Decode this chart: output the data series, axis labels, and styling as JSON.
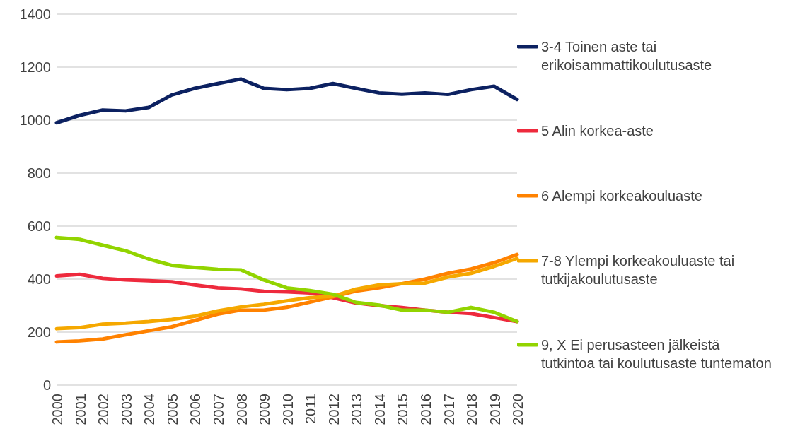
{
  "chart_data": {
    "type": "line",
    "categories": [
      "2000",
      "2001",
      "2002",
      "2003",
      "2004",
      "2005",
      "2006",
      "2007",
      "2008",
      "2009",
      "2010",
      "2011",
      "2012",
      "2013",
      "2014",
      "2015",
      "2016",
      "2017",
      "2018",
      "2019",
      "2020"
    ],
    "series": [
      {
        "name": "3-4 Toinen aste tai erikoisammattikoulutusaste",
        "color": "#0c2161",
        "values": [
          990,
          1018,
          1038,
          1035,
          1048,
          1095,
          1120,
          1138,
          1155,
          1120,
          1115,
          1120,
          1138,
          1120,
          1103,
          1098,
          1103,
          1097,
          1115,
          1128,
          1078
        ]
      },
      {
        "name": "5 Alin korkea-aste",
        "color": "#ee2a3d",
        "values": [
          412,
          418,
          403,
          397,
          394,
          390,
          378,
          367,
          363,
          354,
          352,
          348,
          330,
          310,
          300,
          293,
          283,
          275,
          270,
          255,
          240
        ]
      },
      {
        "name": "6 Alempi korkeakouluaste",
        "color": "#ff8200",
        "values": [
          163,
          167,
          174,
          190,
          205,
          220,
          244,
          268,
          283,
          283,
          294,
          313,
          333,
          355,
          367,
          383,
          400,
          422,
          438,
          462,
          493
        ]
      },
      {
        "name": "7-8 Ylempi korkeakouluaste tai tutkijakoulutusaste",
        "color": "#f5a800",
        "values": [
          213,
          217,
          230,
          234,
          240,
          248,
          260,
          280,
          295,
          305,
          318,
          330,
          335,
          362,
          378,
          383,
          385,
          408,
          422,
          448,
          478
        ]
      },
      {
        "name": "9, X Ei perusasteen jälkeistä tutkintoa tai koulutusaste tuntematon",
        "color": "#92d400",
        "values": [
          557,
          550,
          528,
          507,
          476,
          452,
          444,
          437,
          435,
          397,
          367,
          357,
          343,
          312,
          302,
          283,
          283,
          275,
          293,
          275,
          240
        ]
      }
    ],
    "ylim": [
      0,
      1400
    ],
    "yticks": [
      0,
      200,
      400,
      600,
      800,
      1000,
      1200,
      1400
    ],
    "grid": "y",
    "legend": "right",
    "marker": "none",
    "line_style": "solid"
  }
}
